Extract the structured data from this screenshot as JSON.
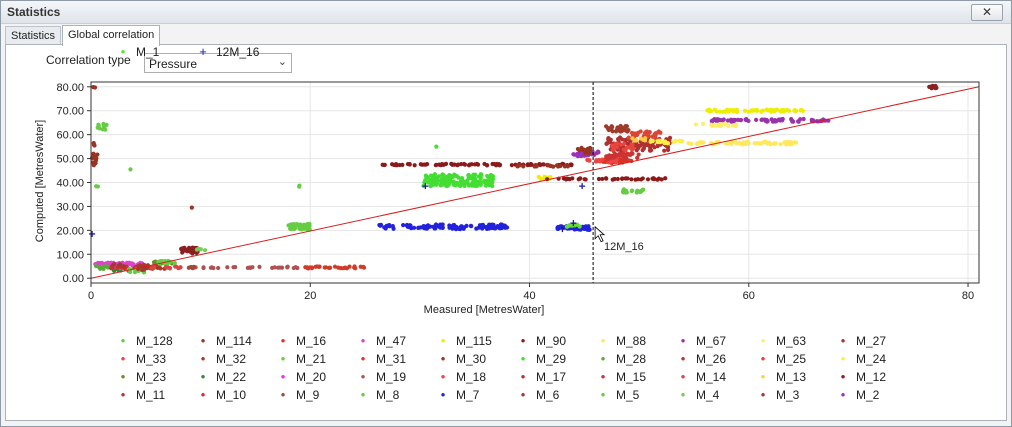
{
  "window": {
    "title": "Statistics",
    "close_label": "✕"
  },
  "tabs": [
    {
      "label": "Statistics"
    },
    {
      "label": "Global correlation"
    }
  ],
  "correlation": {
    "label": "Correlation type",
    "selected": "Pressure"
  },
  "colors": {
    "regression_line": "#d42020",
    "cursor_line": "#000000",
    "grid": "#e6e6e6"
  },
  "chart_data": {
    "type": "scatter",
    "xlabel": "Measured [MetresWater]",
    "ylabel": "Computed [MetresWater]",
    "xlim": [
      0,
      81
    ],
    "ylim": [
      -2,
      82
    ],
    "xticks": [
      "0",
      "20",
      "40",
      "60",
      "80"
    ],
    "yticks": [
      "0.00",
      "10.00",
      "20.00",
      "30.00",
      "40.00",
      "50.00",
      "60.00",
      "70.00",
      "80.00"
    ],
    "grid": true,
    "regression_line": [
      [
        0,
        0
      ],
      [
        81,
        80
      ]
    ],
    "cursor_x": 45.8,
    "cursor_label": "12M_16",
    "series": [
      {
        "name": "M_128",
        "color": "#66cc44",
        "marker": "dot",
        "clusters": [
          [
            1.0,
            63.0,
            0.5,
            1.5,
            14
          ],
          [
            0.5,
            38.5,
            0.2,
            0.3,
            2
          ],
          [
            3.6,
            45.5,
            0.2,
            0.2,
            1
          ]
        ]
      },
      {
        "name": "M_114",
        "color": "#993322",
        "marker": "dot",
        "clusters": [
          [
            0.3,
            52.0,
            0.3,
            5.0,
            15
          ],
          [
            0.3,
            80.0,
            0.2,
            0.3,
            2
          ],
          [
            9.2,
            29.5,
            0.2,
            0.2,
            1
          ]
        ]
      },
      {
        "name": "M_16",
        "color": "#dd3322",
        "marker": "dot",
        "clusters": [
          [
            48.0,
            49.0,
            1.3,
            0.9,
            35
          ]
        ]
      },
      {
        "name": "M_47",
        "color": "#dd44cc",
        "marker": "dot",
        "clusters": [
          [
            2.5,
            6.0,
            2.3,
            0.5,
            50
          ]
        ]
      },
      {
        "name": "M_115",
        "color": "#eeee00",
        "marker": "dot",
        "clusters": [
          [
            60.5,
            70.0,
            4.5,
            0.5,
            55
          ],
          [
            41.5,
            42.0,
            0.7,
            0.5,
            8
          ]
        ]
      },
      {
        "name": "M_90",
        "color": "#8b1a1a",
        "marker": "dot",
        "clusters": [
          [
            35.5,
            47.5,
            9.0,
            0.3,
            80
          ],
          [
            47.0,
            41.5,
            5.5,
            0.3,
            40
          ]
        ]
      },
      {
        "name": "M_88",
        "color": "#ffe85a",
        "marker": "dot",
        "clusters": [
          [
            59.5,
            56.5,
            5.0,
            0.6,
            60
          ]
        ]
      },
      {
        "name": "M_67",
        "color": "#9933aa",
        "marker": "dot",
        "clusters": [
          [
            62.0,
            66.0,
            5.5,
            0.6,
            70
          ],
          [
            45.5,
            52.0,
            0.8,
            1.0,
            20
          ]
        ]
      },
      {
        "name": "M_63",
        "color": "#ffee66",
        "marker": "dot",
        "clusters": [
          [
            57.0,
            64.0,
            2.0,
            0.5,
            18
          ]
        ]
      },
      {
        "name": "M_27",
        "color": "#b03030",
        "marker": "dot",
        "clusters": [
          [
            50.0,
            56.0,
            3.0,
            3.0,
            90
          ]
        ]
      },
      {
        "name": "M_33",
        "color": "#e8453c",
        "marker": "dot",
        "clusters": [
          [
            48.5,
            55.0,
            1.0,
            1.5,
            25
          ]
        ]
      },
      {
        "name": "M_32",
        "color": "#a03a2a",
        "marker": "dot",
        "clusters": [
          [
            48.0,
            62.5,
            1.2,
            1.2,
            30
          ]
        ]
      },
      {
        "name": "M_21",
        "color": "#66cc44",
        "marker": "dot",
        "clusters": [
          [
            49.5,
            36.5,
            1.0,
            0.7,
            22
          ]
        ]
      },
      {
        "name": "M_31",
        "color": "#d23a2a",
        "marker": "dot",
        "clusters": [
          [
            22.0,
            4.5,
            3.0,
            0.4,
            30
          ]
        ]
      },
      {
        "name": "M_30",
        "color": "#993322",
        "marker": "dot",
        "clusters": [
          [
            41.0,
            47.0,
            2.5,
            0.4,
            18
          ],
          [
            45.0,
            53.5,
            0.8,
            1.2,
            20
          ]
        ]
      },
      {
        "name": "M_29",
        "color": "#44dd33",
        "marker": "dot",
        "clusters": [
          [
            33.5,
            41.0,
            3.2,
            2.5,
            160
          ],
          [
            31.5,
            55.0,
            0.2,
            0.2,
            1
          ]
        ]
      },
      {
        "name": "M_28",
        "color": "#5aaa3a",
        "marker": "dot",
        "clusters": [
          [
            1.0,
            4.5,
            0.6,
            0.6,
            10
          ]
        ]
      },
      {
        "name": "M_26",
        "color": "#a83a2a",
        "marker": "dot",
        "clusters": [
          [
            6.0,
            4.5,
            1.5,
            0.6,
            18
          ]
        ]
      },
      {
        "name": "M_25",
        "color": "#dd4433",
        "marker": "dot",
        "clusters": [
          [
            50.5,
            60.0,
            1.5,
            1.5,
            30
          ]
        ]
      },
      {
        "name": "M_24",
        "color": "#ffee44",
        "marker": "dot",
        "clusters": [
          [
            52.5,
            57.0,
            1.5,
            0.6,
            20
          ]
        ]
      },
      {
        "name": "M_23",
        "color": "#6b8b2a",
        "marker": "dot",
        "clusters": [
          [
            6.5,
            6.5,
            0.9,
            0.7,
            12
          ]
        ]
      },
      {
        "name": "M_22",
        "color": "#338833",
        "marker": "dot",
        "clusters": [
          [
            3.2,
            3.5,
            1.2,
            0.6,
            12
          ]
        ]
      },
      {
        "name": "M_20",
        "color": "#ee33dd",
        "marker": "dot",
        "clusters": [
          [
            3.5,
            4.5,
            1.3,
            0.6,
            14
          ]
        ]
      },
      {
        "name": "M_19",
        "color": "#b05050",
        "marker": "dot",
        "clusters": [
          [
            14.0,
            4.5,
            6.0,
            0.3,
            30
          ]
        ]
      },
      {
        "name": "M_18",
        "color": "#ee4444",
        "marker": "dot",
        "clusters": [
          [
            46.5,
            49.0,
            1.5,
            0.6,
            20
          ]
        ]
      },
      {
        "name": "M_17",
        "color": "#aa3a2a",
        "marker": "dot",
        "clusters": [
          [
            5.0,
            5.2,
            0.7,
            0.6,
            8
          ]
        ]
      },
      {
        "name": "M_15",
        "color": "#cc3333",
        "marker": "dot",
        "clusters": [
          [
            48.5,
            51.0,
            1.5,
            1.2,
            30
          ]
        ]
      },
      {
        "name": "M_14",
        "color": "#dd4444",
        "marker": "dot",
        "clusters": [
          [
            7.0,
            4.5,
            1.5,
            0.4,
            12
          ]
        ]
      },
      {
        "name": "M_13",
        "color": "#ffcc44",
        "marker": "dot",
        "clusters": [
          [
            50.0,
            58.0,
            0.8,
            0.6,
            8
          ]
        ]
      },
      {
        "name": "M_12",
        "color": "#8b2020",
        "marker": "dot",
        "clusters": [
          [
            9.0,
            11.5,
            0.8,
            1.3,
            30
          ],
          [
            76.8,
            80.0,
            0.4,
            0.6,
            10
          ]
        ]
      },
      {
        "name": "M_11",
        "color": "#aa3a2a",
        "marker": "dot",
        "clusters": [
          [
            4.5,
            4.5,
            0.6,
            0.4,
            8
          ]
        ]
      },
      {
        "name": "M_10",
        "color": "#cc3030",
        "marker": "dot",
        "clusters": [
          [
            2.5,
            4.5,
            0.8,
            0.4,
            8
          ]
        ]
      },
      {
        "name": "M_9",
        "color": "#a04a3a",
        "marker": "dot",
        "clusters": [
          [
            9.0,
            4.5,
            0.5,
            0.4,
            5
          ]
        ]
      },
      {
        "name": "M_8",
        "color": "#66cc44",
        "marker": "dot",
        "clusters": [
          [
            19.0,
            21.5,
            1.0,
            1.2,
            40
          ],
          [
            7.0,
            6.5,
            1.0,
            0.7,
            14
          ],
          [
            19.0,
            38.5,
            0.2,
            0.3,
            2
          ]
        ]
      },
      {
        "name": "M_7",
        "color": "#2222dd",
        "marker": "dot",
        "clusters": [
          [
            32.0,
            21.5,
            6.0,
            1.0,
            110
          ],
          [
            44.0,
            21.0,
            1.5,
            0.8,
            50
          ]
        ]
      },
      {
        "name": "M_6",
        "color": "#a03a2a",
        "marker": "dot",
        "clusters": [
          [
            2.5,
            5.5,
            0.5,
            0.5,
            5
          ]
        ]
      },
      {
        "name": "M_5",
        "color": "#66cc44",
        "marker": "dot",
        "clusters": [
          [
            4.0,
            3.0,
            0.9,
            0.7,
            14
          ]
        ]
      },
      {
        "name": "M_4",
        "color": "#77cc55",
        "marker": "dot",
        "clusters": [
          [
            10.0,
            12.0,
            0.4,
            0.4,
            4
          ]
        ]
      },
      {
        "name": "M_3",
        "color": "#a03a2a",
        "marker": "dot",
        "clusters": [
          [
            4.5,
            4.0,
            0.6,
            0.6,
            6
          ]
        ]
      },
      {
        "name": "M_2",
        "color": "#9933bb",
        "marker": "dot",
        "clusters": [
          [
            44.5,
            51.5,
            0.7,
            0.6,
            12
          ]
        ]
      },
      {
        "name": "M_1",
        "color": "#66dd33",
        "marker": "dot",
        "clusters": [
          [
            44.0,
            22.0,
            0.6,
            0.6,
            8
          ]
        ]
      },
      {
        "name": "12M_16",
        "color": "#1a1aaa",
        "marker": "plus",
        "clusters": [
          [
            0.1,
            18.5,
            0.05,
            0.05,
            1
          ],
          [
            30.5,
            38.5,
            0.05,
            0.05,
            1
          ],
          [
            44.8,
            38.5,
            0.05,
            0.05,
            1
          ],
          [
            43.0,
            20.5,
            0.05,
            0.05,
            1
          ],
          [
            44.0,
            23.0,
            0.05,
            0.05,
            1
          ]
        ]
      }
    ]
  }
}
